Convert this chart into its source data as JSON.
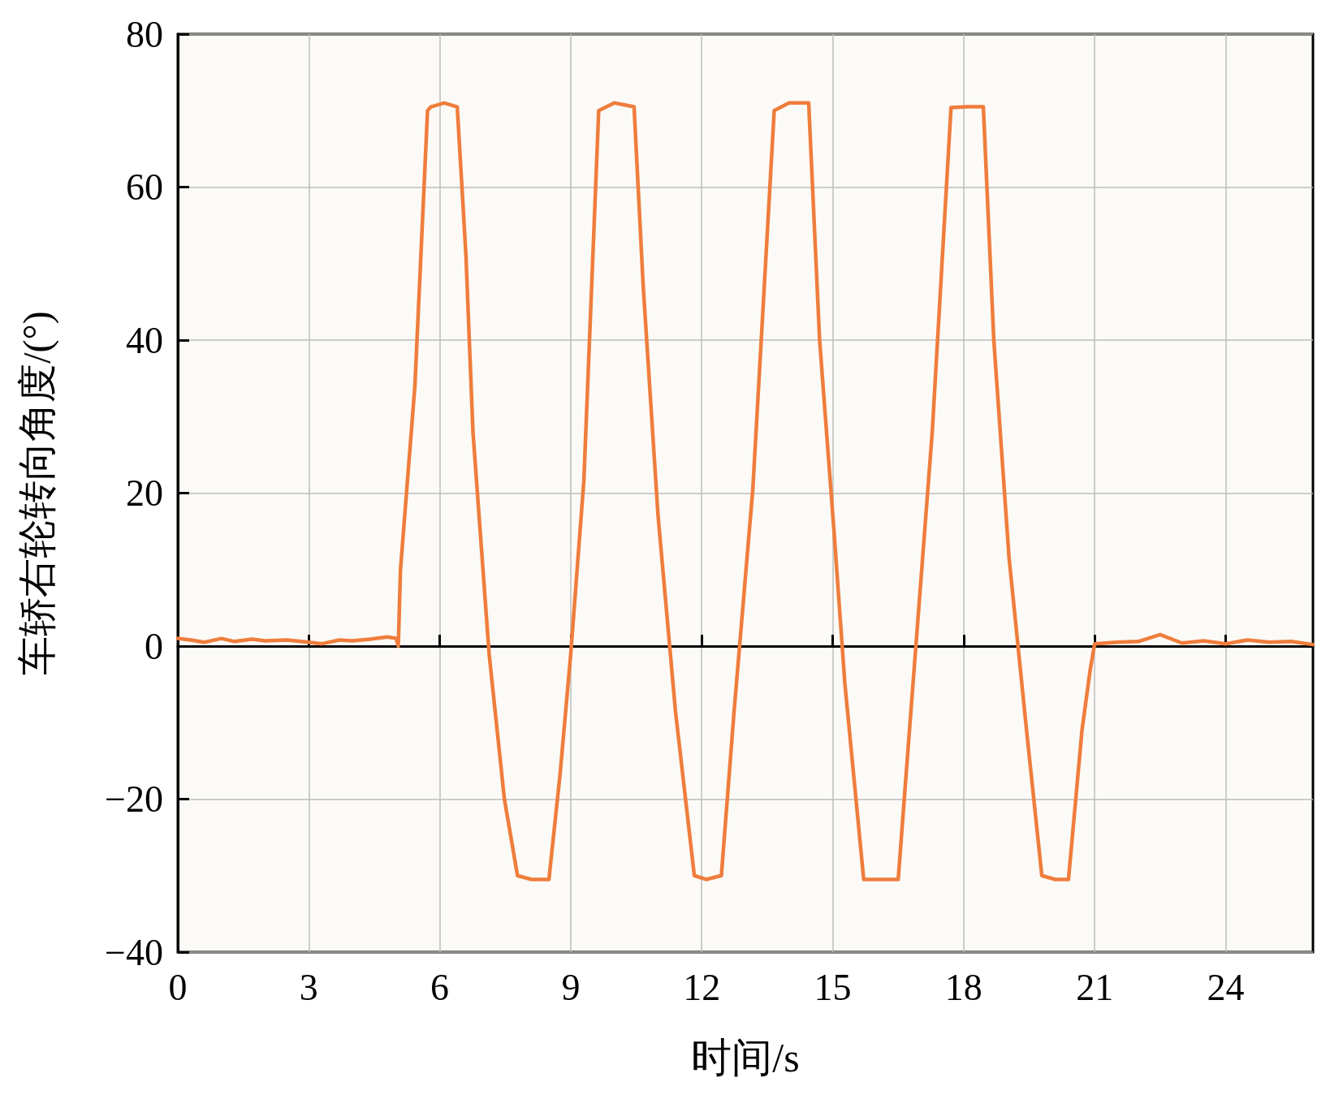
{
  "chart_data": {
    "type": "line",
    "xlabel": "时间/s",
    "ylabel": "车轿右轮转向角度/(°)",
    "x": [
      0,
      0.3,
      0.6,
      1,
      1.3,
      1.7,
      2,
      2.5,
      3,
      3.3,
      3.7,
      4,
      4.4,
      4.8,
      5,
      5.05,
      5.1,
      5.43,
      5.72,
      5.8,
      6.1,
      6.4,
      6.6,
      6.76,
      7.13,
      7.48,
      7.78,
      8.1,
      8.5,
      8.76,
      9,
      9.3,
      9.64,
      10,
      10.45,
      10.66,
      11,
      11.4,
      11.83,
      12.1,
      12.45,
      12.74,
      13.17,
      13.66,
      14,
      14.45,
      14.7,
      15.03,
      15.28,
      15.71,
      16.1,
      16.5,
      16.79,
      17.28,
      17.71,
      18.1,
      18.45,
      18.69,
      19.04,
      19.44,
      19.79,
      20.1,
      20.4,
      20.71,
      20.9,
      21,
      21.5,
      22,
      22.5,
      23,
      23.5,
      24,
      24.5,
      25,
      25.5,
      26
    ],
    "series": [
      {
        "color": "#ef7d3c",
        "values": [
          1,
          0.8,
          0.5,
          1,
          0.6,
          0.9,
          0.7,
          0.8,
          0.5,
          0.3,
          0.8,
          0.7,
          0.9,
          1.2,
          1,
          0,
          10,
          34,
          70,
          70.5,
          71,
          70.5,
          51,
          28,
          -1,
          -20,
          -30,
          -30.5,
          -30.5,
          -16.5,
          -1,
          21.6,
          70,
          71,
          70.5,
          47,
          17,
          -8.6,
          -30,
          -30.5,
          -30,
          -8.6,
          20.5,
          70,
          71,
          71,
          40,
          15,
          -5,
          -30.5,
          -30.5,
          -30.5,
          -8.6,
          28,
          70.4,
          70.5,
          70.5,
          40,
          11.5,
          -11,
          -30,
          -30.5,
          -30.5,
          -11,
          -3,
          0.3,
          0.5,
          0.6,
          1.5,
          0.4,
          0.7,
          0.3,
          0.8,
          0.5,
          0.6,
          0.2
        ]
      }
    ],
    "xlim": [
      0,
      26
    ],
    "xticks": [
      0,
      3,
      6,
      9,
      12,
      15,
      18,
      21,
      24
    ],
    "ylim": [
      -40,
      80
    ],
    "yticks": [
      -40,
      -20,
      0,
      20,
      40,
      60,
      80
    ],
    "grid": true,
    "marker": "none",
    "line_style": "solid"
  }
}
